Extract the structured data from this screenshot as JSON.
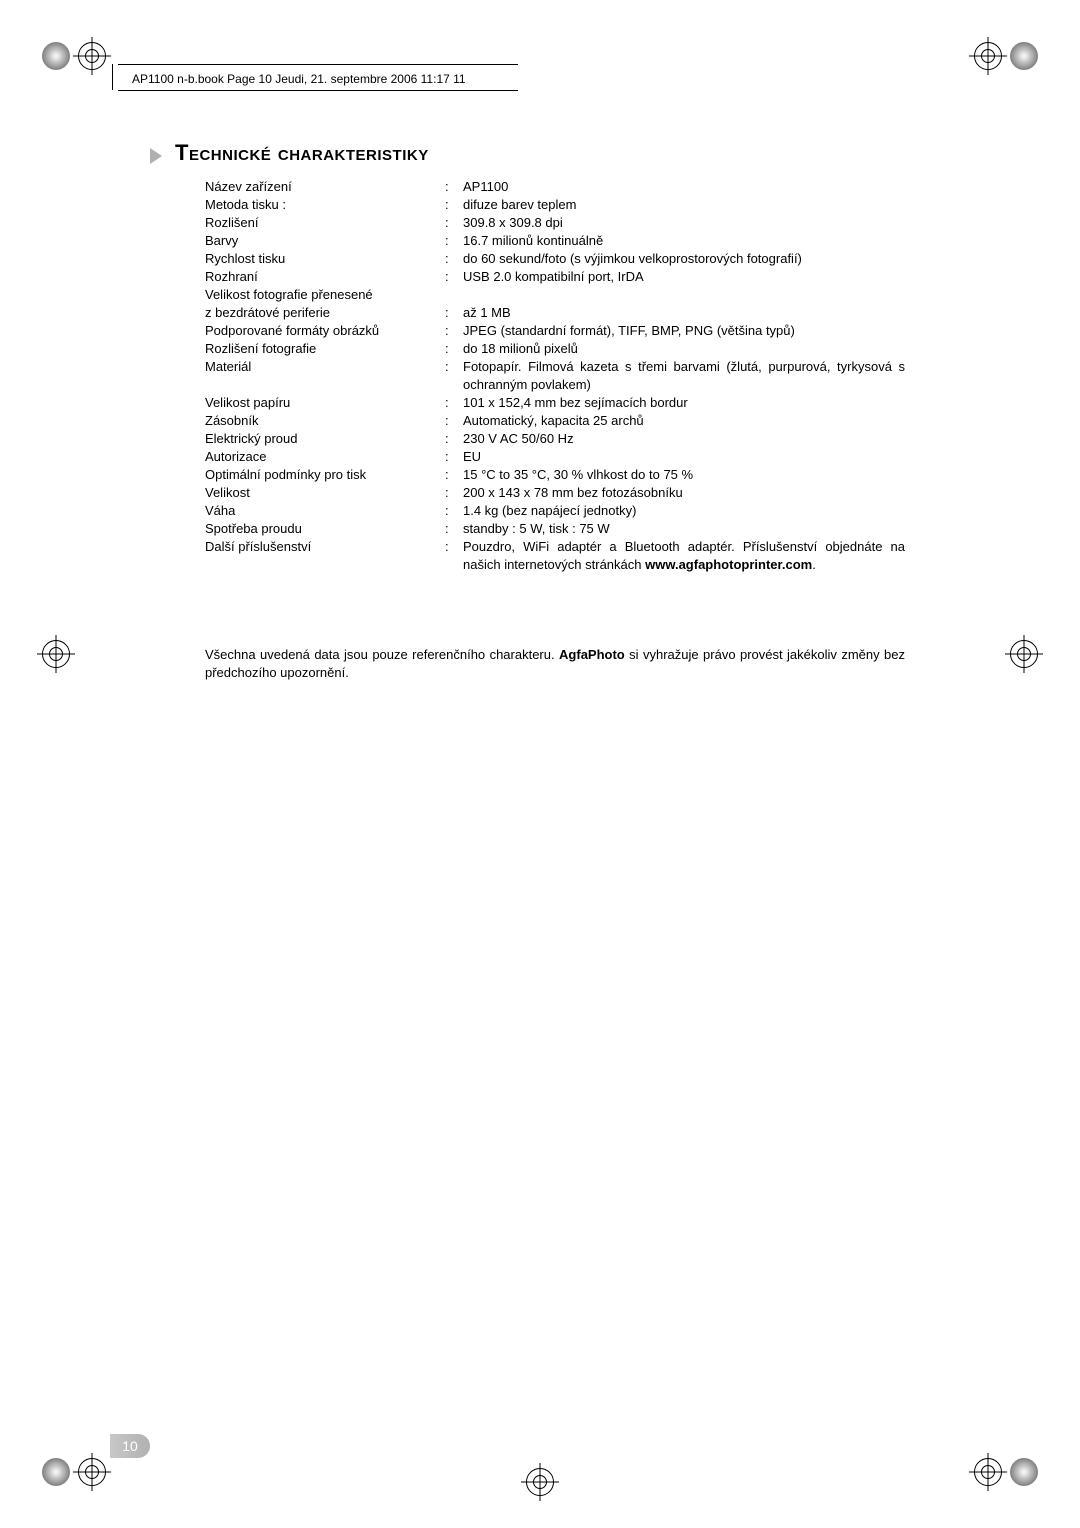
{
  "header": "AP1100 n-b.book  Page 10  Jeudi, 21. septembre 2006  11:17 11",
  "title": "Technické charakteristiky",
  "rows": [
    {
      "label": "Název zařízení",
      "value": "AP1100"
    },
    {
      "label": "Metoda tisku :",
      "value": "difuze barev teplem"
    },
    {
      "label": "Rozlišení",
      "value": "309.8 x 309.8 dpi"
    },
    {
      "label": "Barvy",
      "value": "16.7 milionů kontinuálně"
    },
    {
      "label": "Rychlost tisku",
      "value": "do 60 sekund/foto (s výjimkou velkoprostorových fotografií)"
    },
    {
      "label": "Rozhraní",
      "value": "USB 2.0 kompatibilní port, IrDA"
    },
    {
      "label": "Velikost fotografie přenesené",
      "value": "",
      "nocolon": true
    },
    {
      "label": "z bezdrátové periferie",
      "value": "až 1 MB"
    },
    {
      "label": "Podporované formáty obrázků",
      "value": "JPEG (standardní formát), TIFF, BMP, PNG (většina typů)"
    },
    {
      "label": "Rozlišení fotografie",
      "value": "do 18 milionů pixelů"
    },
    {
      "label": "Materiál",
      "value": "Fotopapír. Filmová kazeta s třemi barvami (žlutá, purpurová, tyrkysová s ochranným povlakem)"
    },
    {
      "label": "Velikost papíru",
      "value": "101 x 152,4 mm bez sejímacích bordur"
    },
    {
      "label": "Zásobník",
      "value": "Automatický, kapacita 25 archů"
    },
    {
      "label": "Elektrický proud",
      "value": "230 V AC 50/60 Hz"
    },
    {
      "label": "Autorizace",
      "value": "EU"
    },
    {
      "label": "Optimální podmínky pro tisk",
      "value": "15 °C to 35 °C, 30 % vlhkost do to 75 %"
    },
    {
      "label": "Velikost",
      "value": "200 x 143 x 78 mm bez fotozásobníku"
    },
    {
      "label": "Váha",
      "value": "1.4 kg (bez napájecí jednotky)"
    },
    {
      "label": "Spotřeba proudu",
      "value": "standby : 5 W, tisk : 75 W"
    },
    {
      "label": "Další příslušenství",
      "value": "Pouzdro, WiFi adaptér a Bluetooth adaptér. Příslušenství objednáte na našich internetových stránkách <b>www.agfaphotoprinter.com</b>."
    }
  ],
  "note": "Všechna uvedená data jsou pouze referenčního charakteru. <b>AgfaPhoto</b> si vyhražuje právo provést jakékoliv změny bez předchozího upozornění.",
  "pagenum": "10"
}
